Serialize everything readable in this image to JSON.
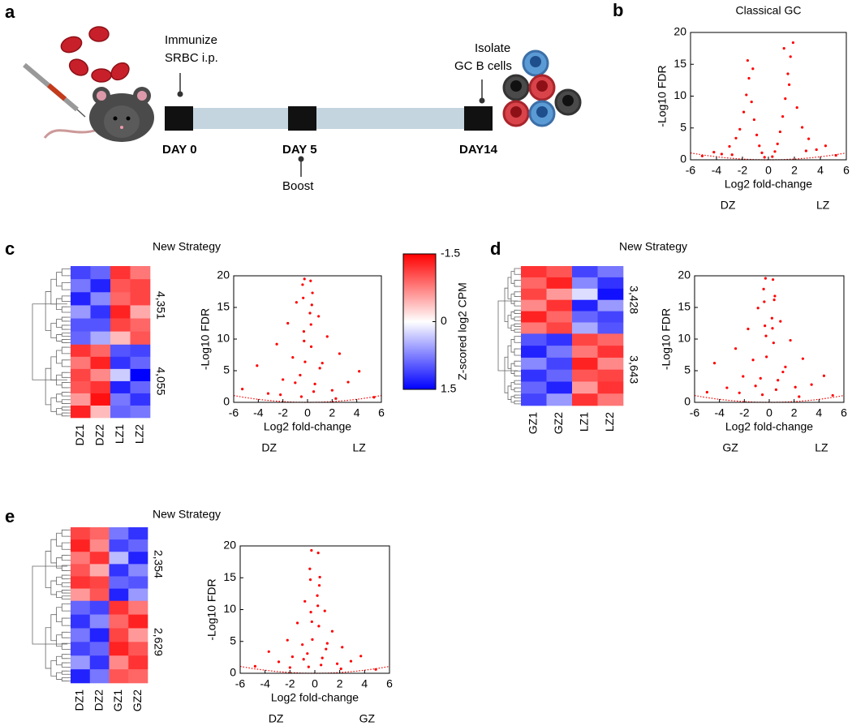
{
  "panel_labels": [
    "a",
    "b",
    "c",
    "d",
    "e"
  ],
  "timeline": {
    "immunize": [
      "Immunize",
      "SRBC i.p."
    ],
    "boost": "Boost",
    "isolate": [
      "Isolate",
      "GC B cells"
    ],
    "days": [
      "DAY 0",
      "DAY 5",
      "DAY14"
    ]
  },
  "chart_data": [
    {
      "type": "scatter",
      "title": "Classical GC",
      "x_label": "Log2 fold-change",
      "y_label": "-Log10 FDR",
      "group_labels": [
        "DZ",
        "LZ"
      ],
      "color": "#ff0000",
      "xlim": [
        -6,
        6
      ],
      "xticks": [
        -6,
        -4,
        -2,
        0,
        2,
        4,
        6
      ],
      "ylim": [
        0,
        20
      ],
      "yticks": [
        0,
        5,
        10,
        15,
        20
      ],
      "x": [
        -5.1,
        -4.2,
        -3.6,
        -3.0,
        -2.5,
        -2.2,
        -1.9,
        -1.7,
        -1.5,
        -1.3,
        -1.1,
        -0.9,
        -0.7,
        -0.5,
        -0.3,
        0.3,
        0.5,
        0.7,
        0.9,
        1.1,
        1.3,
        1.5,
        1.7,
        1.9,
        2.2,
        2.6,
        3.1,
        3.7,
        4.4,
        5.2,
        -1.6,
        1.6,
        -1.2,
        1.2,
        -2.8,
        2.9
      ],
      "y": [
        0.6,
        1.2,
        0.9,
        2.1,
        3.4,
        4.8,
        7.5,
        10.2,
        12.8,
        9.1,
        6.3,
        3.9,
        2.2,
        1.1,
        0.4,
        0.5,
        1.3,
        2.5,
        4.4,
        6.8,
        9.6,
        13.5,
        16.2,
        18.4,
        8.2,
        5.1,
        3.3,
        1.6,
        2.2,
        0.7,
        15.6,
        11.8,
        14.3,
        17.5,
        0.8,
        1.4
      ]
    },
    {
      "type": "heatmap",
      "title": "New Strategy",
      "columns": [
        "DZ1",
        "DZ2",
        "LZ1",
        "LZ2"
      ],
      "clim": [
        -1.5,
        1.5
      ],
      "colors": [
        "#ff0000",
        "#ffffff",
        "#0000ff"
      ],
      "clusters": [
        {
          "count": {
            "value": 4351,
            "label": "4,351"
          },
          "values": [
            [
              1.1,
              0.9,
              -1.2,
              -0.8
            ],
            [
              0.8,
              1.3,
              -1.0,
              -1.1
            ],
            [
              1.3,
              0.7,
              -0.9,
              -1.1
            ],
            [
              0.6,
              1.2,
              -1.3,
              -0.5
            ],
            [
              1.0,
              1.0,
              -1.1,
              -0.9
            ],
            [
              0.9,
              0.5,
              -0.4,
              -1.0
            ]
          ]
        },
        {
          "count": {
            "value": 4055,
            "label": "4,055"
          },
          "values": [
            [
              -1.2,
              -0.9,
              1.0,
              1.1
            ],
            [
              -0.8,
              -1.3,
              1.2,
              0.9
            ],
            [
              -1.1,
              -0.7,
              0.3,
              1.5
            ],
            [
              -1.0,
              -1.2,
              1.3,
              0.9
            ],
            [
              -0.6,
              -1.4,
              0.8,
              1.2
            ],
            [
              -1.3,
              -0.4,
              0.9,
              0.8
            ]
          ]
        }
      ],
      "colorbar": {
        "label": "Z-scored log2 CPM",
        "ticks": [
          -1.5,
          0,
          1.5
        ]
      }
    },
    {
      "type": "scatter",
      "x_label": "Log2 fold-change",
      "y_label": "-Log10 FDR",
      "group_labels": [
        "DZ",
        "LZ"
      ],
      "color": "#ff0000",
      "xlim": [
        -6,
        6
      ],
      "xticks": [
        -6,
        -4,
        -2,
        0,
        2,
        4,
        6
      ],
      "ylim": [
        0,
        20
      ],
      "yticks": [
        0,
        5,
        10,
        15,
        20
      ],
      "x": [
        -5.3,
        -4.1,
        -3.2,
        -2.5,
        -2.0,
        -1.6,
        -1.2,
        -0.9,
        -0.6,
        -0.4,
        -0.3,
        -0.25,
        -0.2,
        0.2,
        0.25,
        0.3,
        0.4,
        0.6,
        0.9,
        1.2,
        1.6,
        2.0,
        2.6,
        3.3,
        4.2,
        5.4,
        -0.35,
        0.35,
        -0.28,
        0.28,
        -1.0,
        1.0,
        -2.2,
        2.3,
        -0.5,
        0.5
      ],
      "y": [
        2.1,
        5.8,
        1.4,
        9.2,
        3.6,
        12.5,
        7.1,
        15.8,
        4.3,
        18.6,
        11.2,
        19.5,
        6.4,
        14.1,
        19.2,
        8.8,
        17.3,
        2.9,
        13.6,
        6.2,
        10.4,
        1.9,
        7.7,
        3.2,
        4.9,
        0.8,
        16.5,
        15.4,
        9.7,
        12.3,
        3.1,
        5.4,
        1.2,
        0.6,
        0.9,
        1.7
      ]
    },
    {
      "type": "heatmap",
      "title": "New Strategy",
      "columns": [
        "GZ1",
        "GZ2",
        "LZ1",
        "LZ2"
      ],
      "clim": [
        -1.5,
        1.5
      ],
      "colors": [
        "#ff0000",
        "#ffffff",
        "#0000ff"
      ],
      "clusters": [
        {
          "count": {
            "value": 3428,
            "label": "3,428"
          },
          "values": [
            [
              -1.2,
              -1.0,
              1.1,
              0.8
            ],
            [
              -0.9,
              -1.3,
              0.7,
              1.2
            ],
            [
              -1.1,
              -0.6,
              0.2,
              1.4
            ],
            [
              -0.7,
              -1.2,
              1.3,
              0.6
            ],
            [
              -1.3,
              -0.9,
              0.9,
              1.1
            ],
            [
              -0.8,
              -1.1,
              0.5,
              1.0
            ]
          ]
        },
        {
          "count": {
            "value": 3643,
            "label": "3,643"
          },
          "values": [
            [
              1.0,
              1.2,
              -1.1,
              -0.9
            ],
            [
              1.3,
              0.8,
              -0.8,
              -1.2
            ],
            [
              0.7,
              1.1,
              -1.3,
              -0.7
            ],
            [
              1.2,
              0.9,
              -1.0,
              -1.1
            ],
            [
              0.9,
              1.3,
              -0.6,
              -1.2
            ],
            [
              1.1,
              0.6,
              -1.2,
              -0.8
            ]
          ]
        }
      ]
    },
    {
      "type": "scatter",
      "x_label": "Log2 fold-change",
      "y_label": "-Log10 FDR",
      "group_labels": [
        "GZ",
        "LZ"
      ],
      "color": "#ff0000",
      "xlim": [
        -6,
        6
      ],
      "xticks": [
        -6,
        -4,
        -2,
        0,
        2,
        4,
        6
      ],
      "ylim": [
        0,
        20
      ],
      "yticks": [
        0,
        5,
        10,
        15,
        20
      ],
      "x": [
        -5.0,
        -4.4,
        -3.4,
        -2.7,
        -2.1,
        -1.7,
        -1.3,
        -0.9,
        -0.7,
        -0.45,
        -0.35,
        -0.3,
        -0.22,
        0.22,
        0.3,
        0.35,
        0.45,
        0.7,
        0.9,
        1.3,
        1.7,
        2.1,
        2.7,
        3.4,
        4.4,
        5.1,
        -0.4,
        0.4,
        -0.26,
        0.26,
        -1.1,
        1.1,
        -2.4,
        2.4,
        -0.55,
        0.55
      ],
      "y": [
        1.6,
        6.2,
        2.3,
        8.5,
        4.1,
        11.6,
        6.7,
        14.9,
        3.8,
        17.9,
        12.1,
        19.6,
        7.2,
        13.3,
        19.4,
        9.4,
        16.8,
        3.5,
        12.8,
        5.6,
        9.8,
        2.4,
        6.9,
        2.8,
        4.2,
        1.1,
        15.9,
        16.2,
        10.5,
        11.7,
        2.6,
        4.8,
        1.5,
        0.9,
        1.2,
        2.0
      ]
    },
    {
      "type": "heatmap",
      "title": "New Strategy",
      "columns": [
        "DZ1",
        "DZ2",
        "GZ1",
        "GZ2"
      ],
      "clim": [
        -1.5,
        1.5
      ],
      "colors": [
        "#ff0000",
        "#ffffff",
        "#0000ff"
      ],
      "clusters": [
        {
          "count": {
            "value": 2354,
            "label": "2,354"
          },
          "values": [
            [
              -1.1,
              -0.9,
              0.8,
              1.2
            ],
            [
              -1.3,
              -0.7,
              1.1,
              0.9
            ],
            [
              -0.8,
              -1.2,
              0.4,
              1.3
            ],
            [
              -1.0,
              -0.5,
              1.2,
              0.7
            ],
            [
              -1.2,
              -1.1,
              0.9,
              1.0
            ],
            [
              -0.6,
              -1.0,
              1.3,
              0.6
            ]
          ]
        },
        {
          "count": {
            "value": 2629,
            "label": "2,629"
          },
          "values": [
            [
              0.9,
              1.1,
              -1.2,
              -0.8
            ],
            [
              1.2,
              0.7,
              -0.9,
              -1.3
            ],
            [
              0.8,
              1.3,
              -1.1,
              -0.6
            ],
            [
              1.1,
              0.9,
              -1.3,
              -1.0
            ],
            [
              0.6,
              1.2,
              -0.7,
              -1.2
            ],
            [
              1.3,
              0.8,
              -1.0,
              -0.9
            ]
          ]
        }
      ]
    },
    {
      "type": "scatter",
      "x_label": "Log2 fold-change",
      "y_label": "-Log10 FDR",
      "group_labels": [
        "DZ",
        "GZ"
      ],
      "color": "#ff0000",
      "xlim": [
        -6,
        6
      ],
      "xticks": [
        -6,
        -4,
        -2,
        0,
        2,
        4,
        6
      ],
      "ylim": [
        0,
        20
      ],
      "yticks": [
        0,
        5,
        10,
        15,
        20
      ],
      "x": [
        -4.8,
        -3.7,
        -2.9,
        -2.2,
        -1.8,
        -1.4,
        -1.0,
        -0.8,
        -0.6,
        -0.4,
        -0.32,
        -0.27,
        -0.2,
        0.2,
        0.27,
        0.32,
        0.4,
        0.6,
        0.8,
        1.0,
        1.4,
        1.8,
        2.2,
        2.9,
        3.7,
        4.9,
        -0.36,
        0.36,
        -0.24,
        0.24,
        -0.9,
        0.9,
        -2.0,
        2.1,
        -0.5,
        0.5
      ],
      "y": [
        1.1,
        3.4,
        1.8,
        5.2,
        2.6,
        7.9,
        4.5,
        11.3,
        3.1,
        16.4,
        9.6,
        19.3,
        5.3,
        12.2,
        18.9,
        7.4,
        15.1,
        2.4,
        9.8,
        4.7,
        6.6,
        1.5,
        4.1,
        1.9,
        2.7,
        0.6,
        14.7,
        13.8,
        8.1,
        10.6,
        2.2,
        3.8,
        0.9,
        0.7,
        1.0,
        1.3
      ]
    }
  ]
}
